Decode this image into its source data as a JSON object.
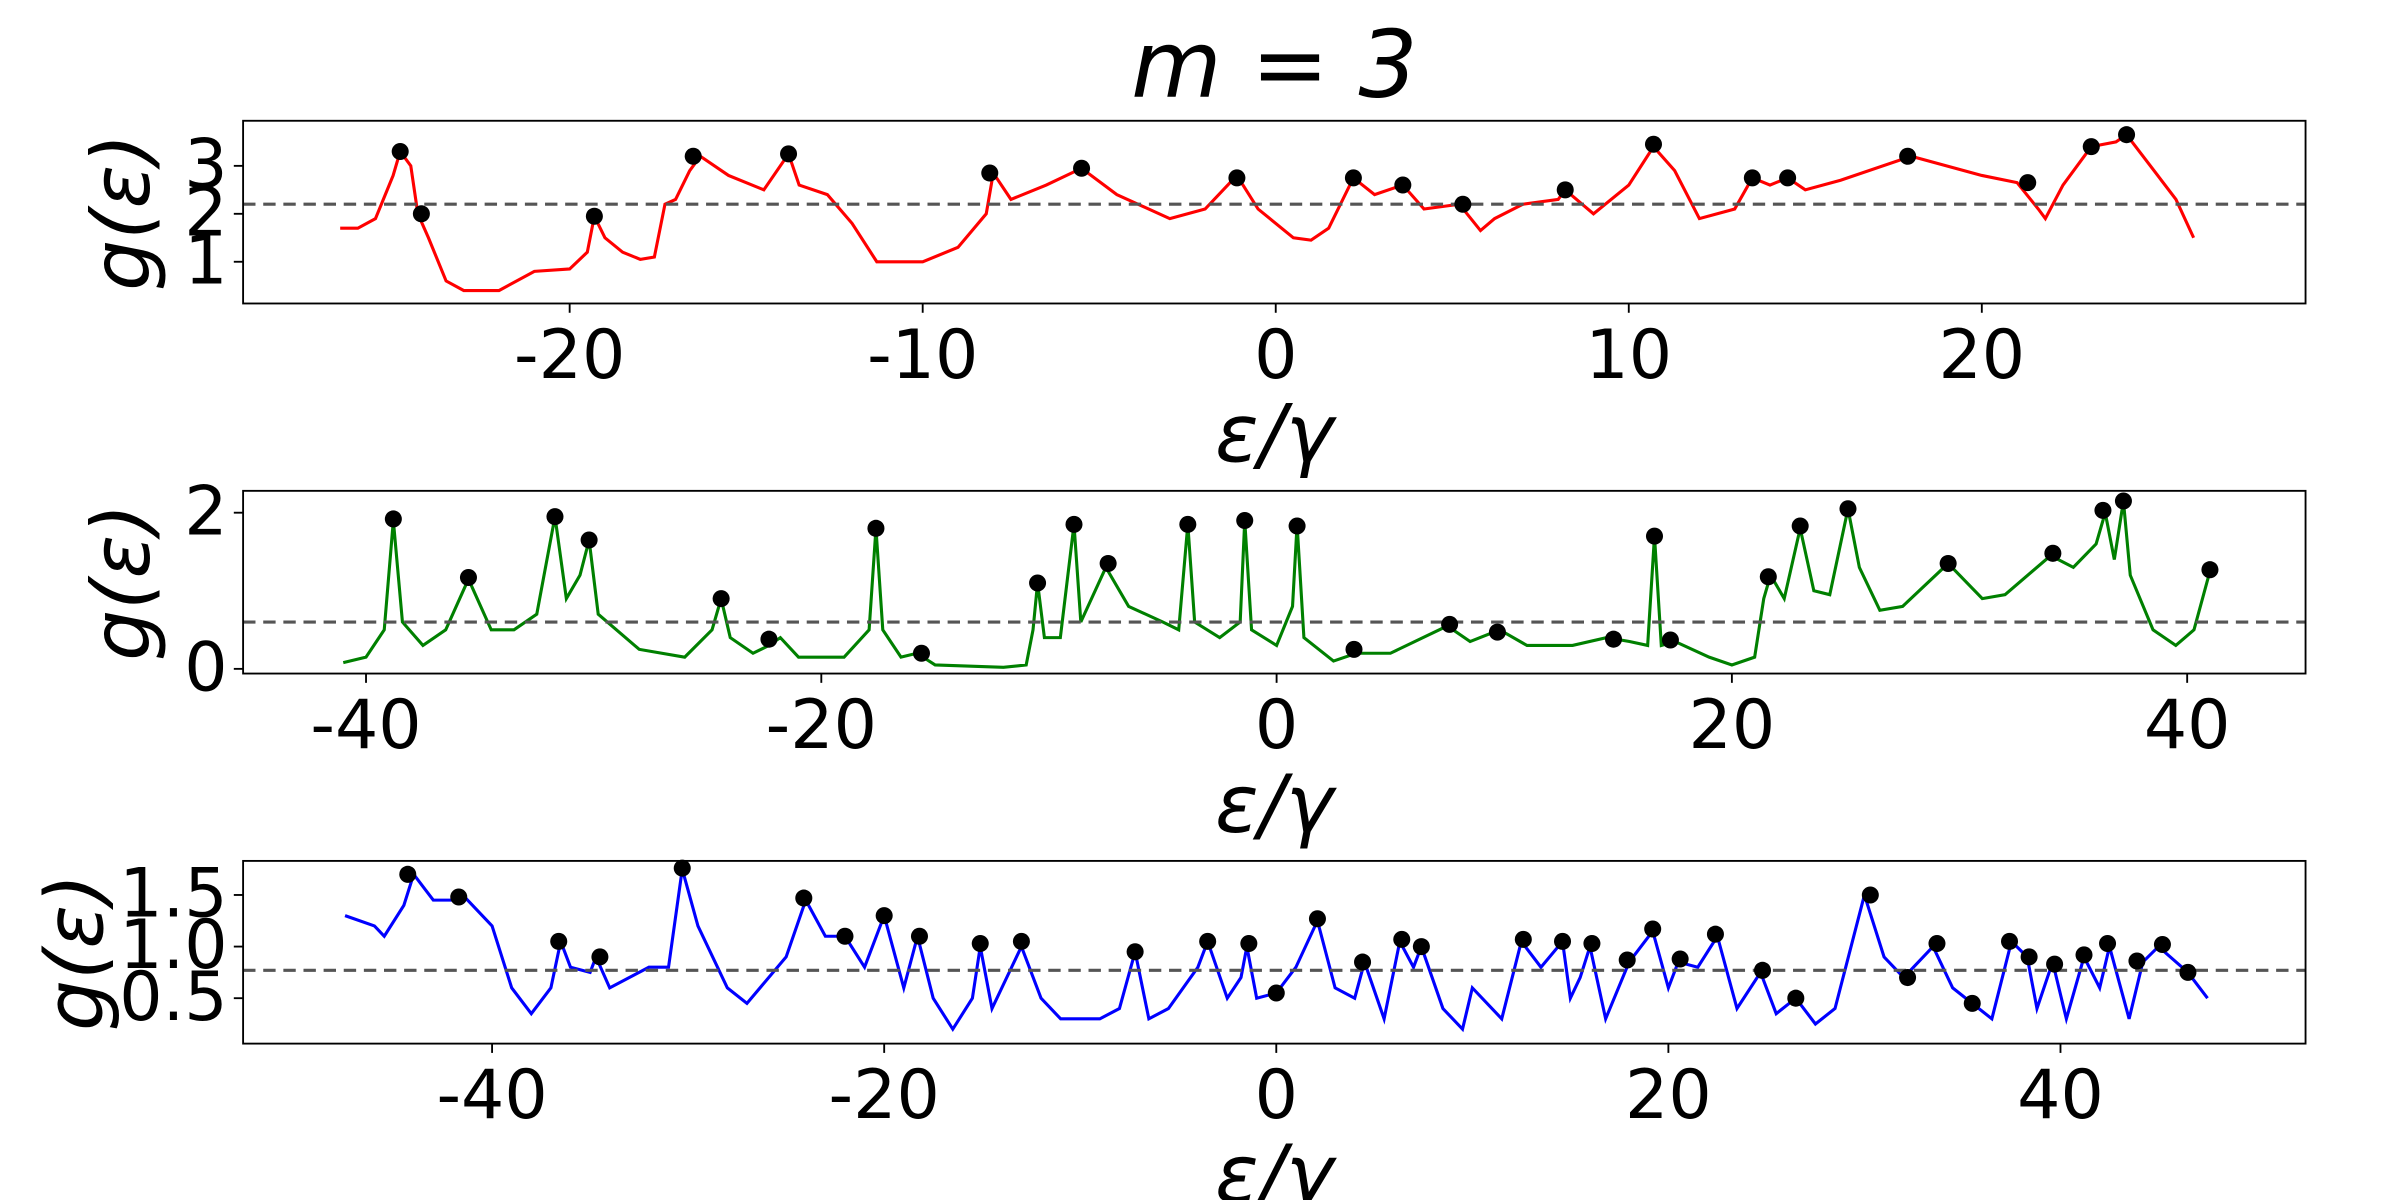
{
  "chart_data": [
    {
      "type": "line",
      "title": "m = 3",
      "xlabel": "ε/γ",
      "ylabel": "g(ε)",
      "xlim": [
        -29.25,
        29.17
      ],
      "ylim": [
        0.13,
        3.94
      ],
      "xticks": [
        -20,
        -10,
        0,
        10,
        20
      ],
      "yticks": [
        1,
        2,
        3
      ],
      "x": [
        -26.5,
        -26,
        -25.5,
        -25,
        -24.8,
        -24.5,
        -24.3,
        -24,
        -23.5,
        -23,
        -22,
        -21,
        -20,
        -19.5,
        -19.3,
        -19,
        -18.5,
        -18,
        -17.6,
        -17.3,
        -17,
        -16.6,
        -16.3,
        -15.5,
        -14.5,
        -13.8,
        -13.5,
        -12.7,
        -12,
        -11.3,
        -10,
        -9,
        -8.2,
        -8,
        -7.5,
        -6.5,
        -5.5,
        -4.5,
        -3,
        -2,
        -1.1,
        -0.5,
        0.5,
        1,
        1.5,
        2.2,
        2.8,
        3.6,
        4.2,
        5.2,
        5.8,
        6.2,
        7,
        8,
        8.2,
        9,
        10,
        10.7,
        11.3,
        12,
        13,
        13.5,
        14,
        14.5,
        15,
        16,
        18,
        20,
        21,
        21.6,
        21.8,
        22.3,
        23.1,
        23.8,
        24.1,
        25.5,
        26
      ],
      "series": [
        {
          "color": "#ff0000",
          "values": [
            1.7,
            1.7,
            1.9,
            2.8,
            3.3,
            3.0,
            2.0,
            1.5,
            0.6,
            0.4,
            0.4,
            0.8,
            0.85,
            1.2,
            1.95,
            1.5,
            1.2,
            1.05,
            1.1,
            2.2,
            2.3,
            2.9,
            3.2,
            2.8,
            2.5,
            3.25,
            2.6,
            2.4,
            1.8,
            1.0,
            1.0,
            1.3,
            2.0,
            2.85,
            2.3,
            2.6,
            2.95,
            2.4,
            1.9,
            2.1,
            2.8,
            2.1,
            1.5,
            1.45,
            1.7,
            2.75,
            2.4,
            2.6,
            2.1,
            2.2,
            1.65,
            1.9,
            2.2,
            2.3,
            2.5,
            2.0,
            2.6,
            3.4,
            2.9,
            1.9,
            2.1,
            2.75,
            2.6,
            2.75,
            2.5,
            2.7,
            3.2,
            2.8,
            2.65,
            2.1,
            1.9,
            2.6,
            3.4,
            3.5,
            3.65,
            2.3,
            1.5
          ]
        }
      ],
      "points": {
        "color": "#000000",
        "x": [
          -24.8,
          -24.2,
          -19.3,
          -16.5,
          -13.8,
          -8.1,
          -5.5,
          -1.1,
          2.2,
          3.6,
          5.3,
          8.2,
          10.7,
          13.5,
          14.5,
          17.9,
          21.3,
          23.1,
          24.1
        ],
        "values": [
          3.3,
          2.0,
          1.95,
          3.2,
          3.25,
          2.85,
          2.95,
          2.75,
          2.75,
          2.6,
          2.2,
          2.5,
          3.45,
          2.75,
          2.75,
          3.2,
          2.65,
          3.4,
          3.65
        ]
      },
      "hline": 2.2,
      "hline_color": "#555555"
    },
    {
      "type": "line",
      "xlabel": "ε/γ",
      "ylabel": "g(ε)",
      "xlim": [
        -45.4,
        45.2
      ],
      "ylim": [
        -0.06,
        2.28
      ],
      "xticks": [
        -40,
        -20,
        0,
        20,
        40
      ],
      "yticks": [
        0,
        2
      ],
      "x": [
        -41,
        -40,
        -39.2,
        -38.8,
        -38.4,
        -37.5,
        -36.5,
        -35.5,
        -34.5,
        -33.5,
        -32.5,
        -31.7,
        -31.2,
        -30.6,
        -30.2,
        -29.8,
        -28,
        -26,
        -24.8,
        -24.4,
        -24,
        -23,
        -22.3,
        -21.8,
        -21,
        -19,
        -17.9,
        -17.6,
        -17.3,
        -16.5,
        -15.8,
        -15,
        -12,
        -11,
        -10.7,
        -10.5,
        -10.2,
        -9.5,
        -8.9,
        -8.6,
        -7.5,
        -6.5,
        -5,
        -4.3,
        -3.9,
        -3.6,
        -2.5,
        -1.6,
        -1.4,
        -1.1,
        0,
        0.7,
        0.9,
        1.2,
        2.5,
        3.5,
        5,
        7.5,
        8.5,
        9.8,
        11,
        13,
        14.5,
        15.5,
        16.3,
        16.6,
        16.9,
        17.5,
        19,
        20,
        21,
        21.4,
        21.7,
        22.3,
        23,
        23.6,
        24.3,
        25.1,
        25.6,
        26.5,
        27.5,
        29.5,
        31,
        32,
        34,
        35,
        36,
        36.4,
        36.8,
        37.2,
        37.5,
        38.5,
        39.5,
        40.3,
        41
      ],
      "series": [
        {
          "color": "#008000",
          "values": [
            0.08,
            0.15,
            0.5,
            1.9,
            0.6,
            0.3,
            0.5,
            1.15,
            0.5,
            0.5,
            0.7,
            1.95,
            0.9,
            1.2,
            1.65,
            0.7,
            0.25,
            0.15,
            0.5,
            0.9,
            0.4,
            0.2,
            0.3,
            0.4,
            0.15,
            0.15,
            0.5,
            1.8,
            0.5,
            0.15,
            0.2,
            0.05,
            0.02,
            0.05,
            0.5,
            1.1,
            0.4,
            0.4,
            1.85,
            0.6,
            1.3,
            0.8,
            0.6,
            0.5,
            1.85,
            0.6,
            0.4,
            0.6,
            1.9,
            0.5,
            0.3,
            0.8,
            1.85,
            0.4,
            0.1,
            0.2,
            0.2,
            0.55,
            0.35,
            0.5,
            0.3,
            0.3,
            0.4,
            0.35,
            0.3,
            1.7,
            0.3,
            0.35,
            0.15,
            0.05,
            0.15,
            0.9,
            1.2,
            0.9,
            1.8,
            1.0,
            0.95,
            2.05,
            1.3,
            0.75,
            0.8,
            1.35,
            0.9,
            0.95,
            1.45,
            1.3,
            1.6,
            2.0,
            1.4,
            2.15,
            1.2,
            0.5,
            0.3,
            0.5,
            1.25
          ]
        }
      ],
      "points": {
        "color": "#000000",
        "x": [
          -38.8,
          -35.5,
          -31.7,
          -30.2,
          -24.4,
          -22.3,
          -17.6,
          -15.6,
          -10.5,
          -8.9,
          -7.4,
          -3.9,
          -1.4,
          0.9,
          3.4,
          7.6,
          9.7,
          14.8,
          16.6,
          17.3,
          21.6,
          23.0,
          25.1,
          29.5,
          34.1,
          36.3,
          37.2,
          41
        ],
        "values": [
          1.92,
          1.17,
          1.95,
          1.65,
          0.9,
          0.38,
          1.8,
          0.2,
          1.1,
          1.85,
          1.35,
          1.85,
          1.9,
          1.83,
          0.25,
          0.57,
          0.47,
          0.38,
          1.7,
          0.37,
          1.18,
          1.83,
          2.05,
          1.35,
          1.48,
          2.03,
          2.15,
          1.27
        ]
      },
      "hline": 0.6,
      "hline_color": "#555555"
    },
    {
      "type": "line",
      "xlabel": "ε/γ",
      "ylabel": "g(ε)",
      "xlim": [
        -52.7,
        52.5
      ],
      "ylim": [
        0.06,
        1.83
      ],
      "xticks": [
        -40,
        -20,
        0,
        20,
        40
      ],
      "yticks": [
        0.5,
        {
          "value": 1,
          "label": "1.0"
        },
        1.5
      ],
      "x": [
        -47.5,
        -46,
        -45.5,
        -44.5,
        -44,
        -43,
        -42,
        -41.5,
        -40,
        -39,
        -38,
        -37,
        -36.5,
        -36,
        -35,
        -34.7,
        -34,
        -32,
        -31,
        -30.3,
        -29.5,
        -28,
        -27,
        -25,
        -24,
        -23,
        -22,
        -21,
        -20,
        -19,
        -18.3,
        -17.5,
        -16.5,
        -15.5,
        -15.1,
        -14.5,
        -13.5,
        -13,
        -12,
        -11,
        -9,
        -8,
        -7.2,
        -6.5,
        -5.5,
        -4,
        -3.5,
        -2.5,
        -1.8,
        -1.5,
        -1,
        0,
        1,
        2.1,
        3,
        4,
        4.5,
        5.5,
        6.3,
        7,
        7.4,
        8.5,
        9.5,
        10,
        11.5,
        12.5,
        13.5,
        14.6,
        15,
        15.5,
        16,
        16.8,
        18,
        19.2,
        20,
        20.5,
        21.5,
        22.5,
        23.5,
        24.7,
        25.5,
        26.5,
        27.5,
        28.5,
        30,
        31,
        32,
        33.5,
        34.5,
        35.5,
        36.5,
        37.5,
        38.3,
        38.8,
        39.6,
        40.3,
        41.2,
        42,
        42.5,
        43.5,
        44.2,
        45,
        46.5,
        47.5
      ],
      "series": [
        {
          "color": "#0000ff",
          "values": [
            1.3,
            1.2,
            1.1,
            1.4,
            1.7,
            1.45,
            1.45,
            1.5,
            1.2,
            0.6,
            0.35,
            0.6,
            1.05,
            0.8,
            0.75,
            0.9,
            0.6,
            0.8,
            0.8,
            1.75,
            1.2,
            0.6,
            0.45,
            0.9,
            1.45,
            1.1,
            1.1,
            0.8,
            1.3,
            0.6,
            1.1,
            0.5,
            0.2,
            0.5,
            1.0,
            0.4,
            0.8,
            1.0,
            0.5,
            0.3,
            0.3,
            0.4,
            0.95,
            0.3,
            0.4,
            0.8,
            1.05,
            0.5,
            0.7,
            1.0,
            0.5,
            0.55,
            0.8,
            1.25,
            0.6,
            0.5,
            0.85,
            0.3,
            1.05,
            0.8,
            1.0,
            0.4,
            0.2,
            0.6,
            0.3,
            1.05,
            0.8,
            1.05,
            0.5,
            0.7,
            1.0,
            0.3,
            0.85,
            1.15,
            0.6,
            0.85,
            0.8,
            1.1,
            0.4,
            0.75,
            0.35,
            0.5,
            0.25,
            0.4,
            1.5,
            0.9,
            0.7,
            1.0,
            0.6,
            0.45,
            0.3,
            1.05,
            0.9,
            0.4,
            0.85,
            0.3,
            0.9,
            0.6,
            1.0,
            0.3,
            0.85,
            1.0,
            0.75,
            0.5
          ]
        }
      ],
      "points": {
        "color": "#000000",
        "x": [
          -44.3,
          -41.7,
          -36.6,
          -34.5,
          -30.3,
          -24.1,
          -22,
          -20,
          -18.2,
          -15.1,
          -13,
          -7.2,
          -3.5,
          -1.4,
          0,
          2.1,
          4.4,
          6.4,
          7.4,
          12.6,
          14.6,
          16.1,
          17.9,
          19.2,
          20.6,
          22.4,
          24.8,
          26.5,
          30.3,
          32.2,
          33.7,
          35.5,
          37.4,
          38.4,
          39.7,
          41.2,
          42.4,
          43.9,
          45.2,
          46.5
        ],
        "values": [
          1.7,
          1.48,
          1.05,
          0.9,
          1.76,
          1.47,
          1.1,
          1.3,
          1.1,
          1.03,
          1.05,
          0.95,
          1.05,
          1.03,
          0.55,
          1.27,
          0.85,
          1.07,
          1.0,
          1.07,
          1.05,
          1.03,
          0.87,
          1.17,
          0.88,
          1.12,
          0.77,
          0.5,
          1.5,
          0.7,
          1.03,
          0.45,
          1.05,
          0.9,
          0.83,
          0.92,
          1.03,
          0.86,
          1.02,
          0.75
        ]
      },
      "hline": 0.77,
      "hline_color": "#555555"
    }
  ]
}
